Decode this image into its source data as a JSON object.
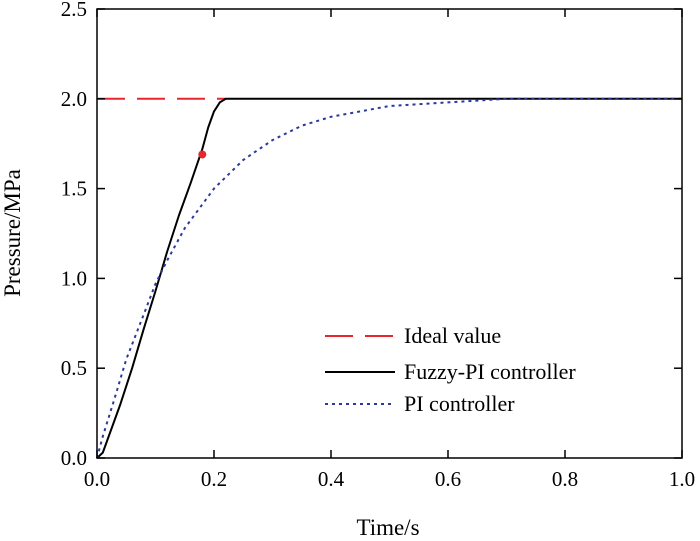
{
  "chart_data": {
    "type": "line",
    "xlabel": "Time/s",
    "ylabel": "Pressure/MPa",
    "xlim": [
      0,
      1.0
    ],
    "ylim": [
      0,
      2.5
    ],
    "xticks": [
      "0.0",
      "0.2",
      "0.4",
      "0.6",
      "0.8",
      "1.0"
    ],
    "yticks": [
      "0.0",
      "0.5",
      "1.0",
      "1.5",
      "2.0",
      "2.5"
    ],
    "xtick_values": [
      0,
      0.2,
      0.4,
      0.6,
      0.8,
      1.0
    ],
    "ytick_values": [
      0,
      0.5,
      1.0,
      1.5,
      2.0,
      2.5
    ],
    "grid": false,
    "legend_position": "lower-right",
    "series": [
      {
        "name": "Ideal value",
        "style": "dashed",
        "color": "#e8262b",
        "x": [
          0.0,
          0.22
        ],
        "y": [
          2.0,
          2.0
        ]
      },
      {
        "name": "Fuzzy-PI controller",
        "style": "solid",
        "color": "#000000",
        "x": [
          0.0,
          0.01,
          0.02,
          0.04,
          0.06,
          0.08,
          0.1,
          0.12,
          0.14,
          0.16,
          0.18,
          0.19,
          0.2,
          0.21,
          0.22,
          0.23,
          0.25,
          0.3,
          0.4,
          0.5,
          0.6,
          0.7,
          0.8,
          0.9,
          1.0
        ],
        "y": [
          0.0,
          0.03,
          0.12,
          0.3,
          0.5,
          0.72,
          0.93,
          1.15,
          1.35,
          1.53,
          1.72,
          1.84,
          1.93,
          1.98,
          2.0,
          2.0,
          2.0,
          2.0,
          2.0,
          2.0,
          2.0,
          2.0,
          2.0,
          2.0,
          2.0
        ]
      },
      {
        "name": "PI controller",
        "style": "dotted",
        "color": "#2b3a9a",
        "x": [
          0.0,
          0.01,
          0.03,
          0.05,
          0.08,
          0.1,
          0.12,
          0.15,
          0.2,
          0.25,
          0.3,
          0.35,
          0.4,
          0.45,
          0.5,
          0.55,
          0.6,
          0.65,
          0.7,
          0.75,
          0.8,
          0.9,
          1.0
        ],
        "y": [
          0.0,
          0.12,
          0.33,
          0.55,
          0.8,
          0.97,
          1.1,
          1.28,
          1.5,
          1.66,
          1.77,
          1.85,
          1.9,
          1.93,
          1.96,
          1.97,
          1.98,
          1.99,
          2.0,
          2.0,
          2.0,
          2.0,
          2.0
        ]
      }
    ],
    "markers": [
      {
        "x": 0.18,
        "y": 1.69,
        "color": "#e8262b"
      }
    ]
  }
}
